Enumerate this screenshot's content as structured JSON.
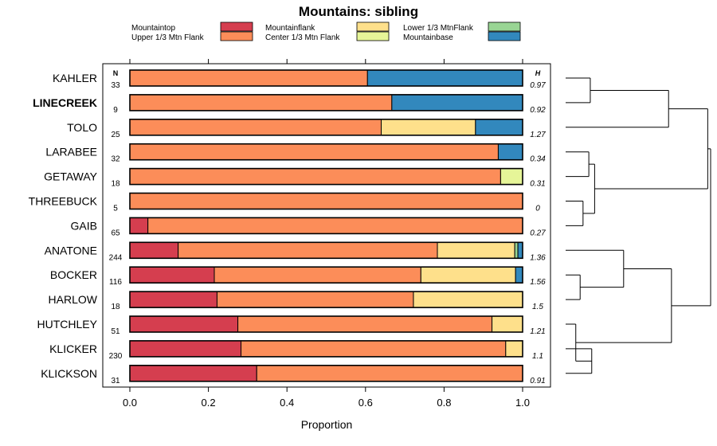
{
  "chart_data": {
    "type": "bar",
    "orientation": "horizontal-stacked",
    "title": "Mountains: sibling",
    "xlabel": "Proportion",
    "xlim": [
      0,
      1
    ],
    "xticks": [
      "0.0",
      "0.2",
      "0.4",
      "0.6",
      "0.8",
      "1.0"
    ],
    "n_header": "N",
    "h_header": "H",
    "series": [
      {
        "name": "Mountaintop",
        "color": "#d53e4f"
      },
      {
        "name": "Upper 1/3 Mtn Flank",
        "color": "#fc8d59"
      },
      {
        "name": "Mountainflank",
        "color": "#fee08b"
      },
      {
        "name": "Center 1/3 Mtn Flank",
        "color": "#e6f598"
      },
      {
        "name": "Lower 1/3 MtnFlank",
        "color": "#99d594"
      },
      {
        "name": "Mountainbase",
        "color": "#3288bd"
      }
    ],
    "categories": [
      {
        "label": "KAHLER",
        "n": "33",
        "h": "0.97",
        "bold": false,
        "values": [
          0,
          0.605,
          0,
          0,
          0,
          0.395
        ]
      },
      {
        "label": "LINECREEK",
        "n": "9",
        "h": "0.92",
        "bold": true,
        "values": [
          0,
          0.667,
          0,
          0,
          0,
          0.333
        ]
      },
      {
        "label": "TOLO",
        "n": "25",
        "h": "1.27",
        "bold": false,
        "values": [
          0,
          0.64,
          0.24,
          0,
          0,
          0.12
        ]
      },
      {
        "label": "LARABEE",
        "n": "32",
        "h": "0.34",
        "bold": false,
        "values": [
          0,
          0.938,
          0,
          0,
          0,
          0.062
        ]
      },
      {
        "label": "GETAWAY",
        "n": "18",
        "h": "0.31",
        "bold": false,
        "values": [
          0,
          0.944,
          0,
          0.056,
          0,
          0
        ]
      },
      {
        "label": "THREEBUCK",
        "n": "5",
        "h": "0",
        "bold": false,
        "values": [
          0,
          1.0,
          0,
          0,
          0,
          0
        ]
      },
      {
        "label": "GAIB",
        "n": "65",
        "h": "0.27",
        "bold": false,
        "values": [
          0.046,
          0.954,
          0,
          0,
          0,
          0
        ]
      },
      {
        "label": "ANATONE",
        "n": "244",
        "h": "1.36",
        "bold": false,
        "values": [
          0.123,
          0.66,
          0.197,
          0,
          0.008,
          0.012
        ]
      },
      {
        "label": "BOCKER",
        "n": "116",
        "h": "1.56",
        "bold": false,
        "values": [
          0.215,
          0.526,
          0.241,
          0,
          0,
          0.018
        ]
      },
      {
        "label": "HARLOW",
        "n": "18",
        "h": "1.5",
        "bold": false,
        "values": [
          0.222,
          0.5,
          0.278,
          0,
          0,
          0
        ]
      },
      {
        "label": "HUTCHLEY",
        "n": "51",
        "h": "1.21",
        "bold": false,
        "values": [
          0.275,
          0.647,
          0.078,
          0,
          0,
          0
        ]
      },
      {
        "label": "KLICKER",
        "n": "230",
        "h": "1.1",
        "bold": false,
        "values": [
          0.283,
          0.674,
          0.043,
          0,
          0,
          0
        ]
      },
      {
        "label": "KLICKSON",
        "n": "31",
        "h": "0.91",
        "bold": false,
        "values": [
          0.323,
          0.677,
          0,
          0,
          0,
          0
        ]
      }
    ],
    "dendrogram": {
      "leaves": [
        "KAHLER",
        "LINECREEK",
        "TOLO",
        "LARABEE",
        "GETAWAY",
        "THREEBUCK",
        "GAIB",
        "ANATONE",
        "BOCKER",
        "HARLOW",
        "HUTCHLEY",
        "KLICKER",
        "KLICKSON"
      ],
      "merges": [
        {
          "a": 0,
          "b": 1,
          "height": 0.17
        },
        {
          "a": 13,
          "b": 2,
          "height": 0.71
        },
        {
          "a": 3,
          "b": 4,
          "height": 0.16
        },
        {
          "a": 5,
          "b": 6,
          "height": 0.12
        },
        {
          "a": 15,
          "b": 16,
          "height": 0.2
        },
        {
          "a": 14,
          "b": 17,
          "height": 0.98
        },
        {
          "a": 8,
          "b": 9,
          "height": 0.1
        },
        {
          "a": 7,
          "b": 19,
          "height": 0.4
        },
        {
          "a": 11,
          "b": 12,
          "height": 0.18
        },
        {
          "a": 10,
          "b": 21,
          "height": 0.07
        },
        {
          "a": 20,
          "b": 22,
          "height": 0.73
        },
        {
          "a": 18,
          "b": 23,
          "height": 1.0
        }
      ]
    }
  }
}
